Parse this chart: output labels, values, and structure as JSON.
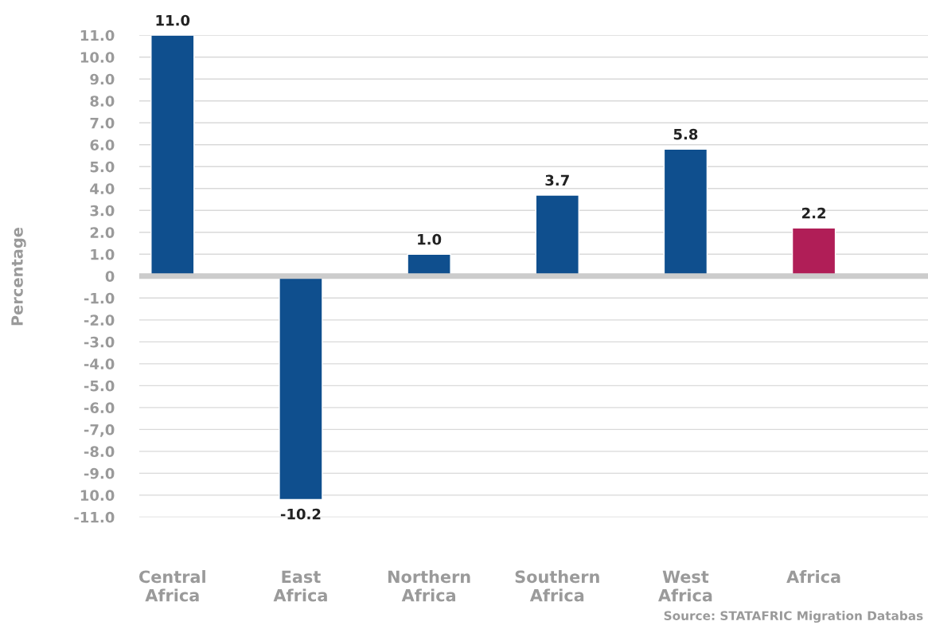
{
  "chart_data": {
    "type": "bar",
    "ylabel": "Percentage",
    "categories": [
      "Central\nAfrica",
      "East\nAfrica",
      "Northern\nAfrica",
      "Southern\nAfrica",
      "West\nAfrica",
      "Africa"
    ],
    "values": [
      11.0,
      -10.2,
      1.0,
      3.7,
      5.8,
      2.2
    ],
    "colors": [
      "#0f4f8e",
      "#0f4f8e",
      "#0f4f8e",
      "#0f4f8e",
      "#0f4f8e",
      "#b01e57"
    ],
    "value_labels": [
      "11.0",
      "-10.2",
      "1.0",
      "3.7",
      "5.8",
      "2.2"
    ],
    "ylim": [
      -11,
      11
    ],
    "yticks": [
      {
        "value": -11,
        "label": "-11.0"
      },
      {
        "value": -10,
        "label": "10.0"
      },
      {
        "value": -9,
        "label": "-9.0"
      },
      {
        "value": -8,
        "label": "-8.0"
      },
      {
        "value": -7,
        "label": "-7,0"
      },
      {
        "value": -6,
        "label": "-6.0"
      },
      {
        "value": -5,
        "label": "-5.0"
      },
      {
        "value": -4,
        "label": "-4.0"
      },
      {
        "value": -3,
        "label": "-3.0"
      },
      {
        "value": -2,
        "label": "-2.0"
      },
      {
        "value": -1,
        "label": "-1.0"
      },
      0,
      {
        "value": 1,
        "label": "1.0"
      },
      {
        "value": 2,
        "label": "2.0"
      },
      {
        "value": 3,
        "label": "3.0"
      },
      {
        "value": 4,
        "label": "4.0"
      },
      {
        "value": 5,
        "label": "5.0"
      },
      {
        "value": 6,
        "label": "6.0"
      },
      {
        "value": 7,
        "label": "7.0"
      },
      {
        "value": 8,
        "label": "8.0"
      },
      {
        "value": 9,
        "label": "9.0"
      },
      {
        "value": 10,
        "label": "10.0"
      },
      {
        "value": 11,
        "label": "11.0"
      }
    ],
    "grid": "y",
    "legend": false,
    "ref_lines": [
      {
        "axis": "y",
        "value": 0,
        "color": "#cccccc"
      }
    ],
    "annotations": [
      "Source: STATAFRIC Migration Databas"
    ]
  }
}
